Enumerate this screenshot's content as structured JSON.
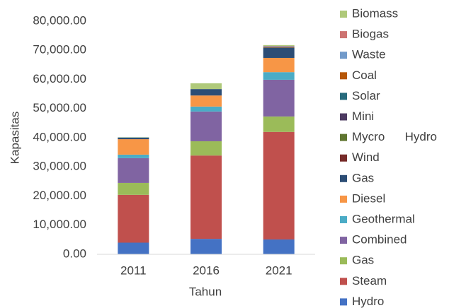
{
  "chart_data": {
    "type": "stacked_bar",
    "xlabel": "Tahun",
    "ylabel": "Kapasitas",
    "categories": [
      "2011",
      "2016",
      "2021"
    ],
    "series": [
      {
        "name": "Hydro",
        "color": "#4472c4",
        "values": [
          4000,
          5300,
          5100
        ]
      },
      {
        "name": "Steam",
        "color": "#c0504d",
        "values": [
          16400,
          28600,
          36900
        ]
      },
      {
        "name": "Gas",
        "color": "#9bbb59",
        "values": [
          4100,
          4900,
          5300
        ]
      },
      {
        "name": "Combined",
        "color": "#8064a2",
        "values": [
          8500,
          10200,
          12600
        ]
      },
      {
        "name": "Geothermal",
        "color": "#4bacc6",
        "values": [
          1200,
          1700,
          2600
        ]
      },
      {
        "name": "Diesel",
        "color": "#f79646",
        "values": [
          5300,
          3800,
          4900
        ]
      },
      {
        "name": "Gas",
        "color": "#2c4d75",
        "values": [
          500,
          2200,
          3400
        ]
      },
      {
        "name": "Wind",
        "color": "#772c2a",
        "values": [
          0,
          0,
          100
        ]
      },
      {
        "name": "Mycro      Hydro",
        "color": "#5f7530",
        "values": [
          0,
          0,
          100
        ]
      },
      {
        "name": "Mini",
        "color": "#4d3b62",
        "values": [
          0,
          0,
          100
        ]
      },
      {
        "name": "Solar",
        "color": "#276a7c",
        "values": [
          0,
          0,
          100
        ]
      },
      {
        "name": "Coal",
        "color": "#b65708",
        "values": [
          0,
          0,
          100
        ]
      },
      {
        "name": "Waste",
        "color": "#729aca",
        "values": [
          100,
          0,
          100
        ]
      },
      {
        "name": "Biogas",
        "color": "#cd7371",
        "values": [
          0,
          0,
          100
        ]
      },
      {
        "name": "Biomass",
        "color": "#afc97a",
        "values": [
          100,
          2000,
          300
        ]
      }
    ],
    "ylim": [
      0,
      80000
    ],
    "yticks": [
      {
        "value": 0,
        "label": "0.00"
      },
      {
        "value": 10000,
        "label": "10,000.00"
      },
      {
        "value": 20000,
        "label": "20,000.00"
      },
      {
        "value": 30000,
        "label": "30,000.00"
      },
      {
        "value": 40000,
        "label": "40,000.00"
      },
      {
        "value": 50000,
        "label": "50,000.00"
      },
      {
        "value": 60000,
        "label": "60,000.00"
      },
      {
        "value": 70000,
        "label": "70,000.00"
      },
      {
        "value": 80000,
        "label": "80,000.00"
      }
    ],
    "grid": false,
    "legend": "right"
  }
}
